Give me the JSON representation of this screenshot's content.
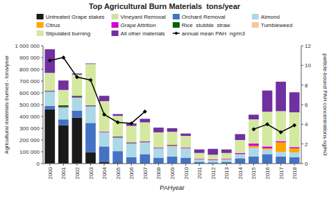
{
  "chart_data": {
    "type": "bar",
    "stacked": true,
    "title": "Top Agricultural Burn Materials  tons/year",
    "xlabel": "PAHyear",
    "ylabel": "Agricultural materials burned - tons/year",
    "y2label": "particle-bound PAH concentrations ng/m3",
    "categories": [
      "2000",
      "2001",
      "2002",
      "2003",
      "2004",
      "2005",
      "2006",
      "2007",
      "2008",
      "2009",
      "2010",
      "2011",
      "2012",
      "2013",
      "2014",
      "2015",
      "2016",
      "2017",
      "2018"
    ],
    "ylim": [
      0,
      1000000
    ],
    "yticks": [
      0,
      {
        "value": 100000,
        "label": "100 000"
      },
      {
        "value": 200000,
        "label": "200 000"
      },
      {
        "value": 300000,
        "label": "300 000"
      },
      {
        "value": 400000,
        "label": "400 000"
      },
      {
        "value": 500000,
        "label": "500 000"
      },
      {
        "value": 600000,
        "label": "600 000"
      },
      {
        "value": 700000,
        "label": "700 000"
      },
      {
        "value": 800000,
        "label": "800 000"
      },
      {
        "value": 900000,
        "label": "900 000"
      },
      {
        "value": 1000000,
        "label": "1 000 000"
      }
    ],
    "y2lim": [
      0,
      12
    ],
    "y2ticks": [
      0,
      2,
      4,
      6,
      8,
      10,
      12
    ],
    "grid": false,
    "legend": "top",
    "series": [
      {
        "name": "Untreated Grape stakes",
        "color": "#1a1a1a",
        "values": [
          460000,
          325000,
          390000,
          95000,
          15000,
          5000,
          0,
          0,
          0,
          0,
          0,
          0,
          0,
          0,
          0,
          0,
          0,
          0,
          0
        ]
      },
      {
        "name": "Vineyard Removal",
        "color": "#c8e6a0",
        "values": [
          0,
          0,
          0,
          0,
          0,
          0,
          0,
          0,
          0,
          0,
          0,
          0,
          0,
          0,
          0,
          0,
          0,
          0,
          0
        ]
      },
      {
        "name": "Orchard Removal",
        "color": "#4472c4",
        "values": [
          30000,
          50000,
          60000,
          250000,
          130000,
          100000,
          55000,
          80000,
          50000,
          60000,
          50000,
          15000,
          10000,
          15000,
          45000,
          60000,
          80000,
          60000,
          55000
        ]
      },
      {
        "name": "Almond",
        "color": "#add8e6",
        "values": [
          120000,
          100000,
          110000,
          140000,
          120000,
          115000,
          115000,
          100000,
          80000,
          85000,
          80000,
          20000,
          20000,
          20000,
          35000,
          75000,
          40000,
          40000,
          40000
        ]
      },
      {
        "name": "Citrus",
        "color": "#ffa500",
        "values": [
          0,
          0,
          0,
          0,
          0,
          0,
          0,
          0,
          0,
          5000,
          0,
          0,
          0,
          0,
          0,
          15000,
          10000,
          80000,
          35000
        ]
      },
      {
        "name": "Grape Attrition",
        "color": "#cc00cc",
        "values": [
          5000,
          5000,
          5000,
          5000,
          5000,
          5000,
          5000,
          5000,
          5000,
          5000,
          5000,
          5000,
          5000,
          5000,
          10000,
          20000,
          15000,
          10000,
          10000
        ]
      },
      {
        "name": "Rice  stubble  straw",
        "color": "#006400",
        "values": [
          5000,
          15000,
          10000,
          5000,
          0,
          5000,
          5000,
          5000,
          0,
          5000,
          0,
          0,
          0,
          0,
          0,
          0,
          0,
          0,
          0
        ]
      },
      {
        "name": "Tumbleweed",
        "color": "#f5c6a0",
        "values": [
          0,
          0,
          0,
          0,
          0,
          0,
          0,
          0,
          0,
          0,
          0,
          0,
          0,
          0,
          0,
          5000,
          5000,
          5000,
          5000
        ]
      },
      {
        "name": "Stipulated burning",
        "color": "#d4e8a0",
        "values": [
          150000,
          130000,
          180000,
          350000,
          260000,
          175000,
          140000,
          160000,
          130000,
          110000,
          100000,
          50000,
          40000,
          50000,
          110000,
          200000,
          290000,
          250000,
          290000
        ]
      },
      {
        "name": "All other materials",
        "color": "#7030a0",
        "values": [
          200000,
          80000,
          10000,
          5000,
          45000,
          15000,
          20000,
          30000,
          40000,
          30000,
          20000,
          30000,
          50000,
          30000,
          50000,
          40000,
          180000,
          250000,
          170000
        ]
      },
      {
        "name": "annual mean PAH  ng/m3",
        "type": "line",
        "axis": "y2",
        "color": "#000000",
        "marker": "diamond",
        "values": [
          10.5,
          10.8,
          8.8,
          8.5,
          5.0,
          4.2,
          4.1,
          5.3,
          null,
          null,
          null,
          null,
          null,
          null,
          null,
          3.5,
          4.0,
          3.2,
          3.9
        ]
      }
    ]
  }
}
